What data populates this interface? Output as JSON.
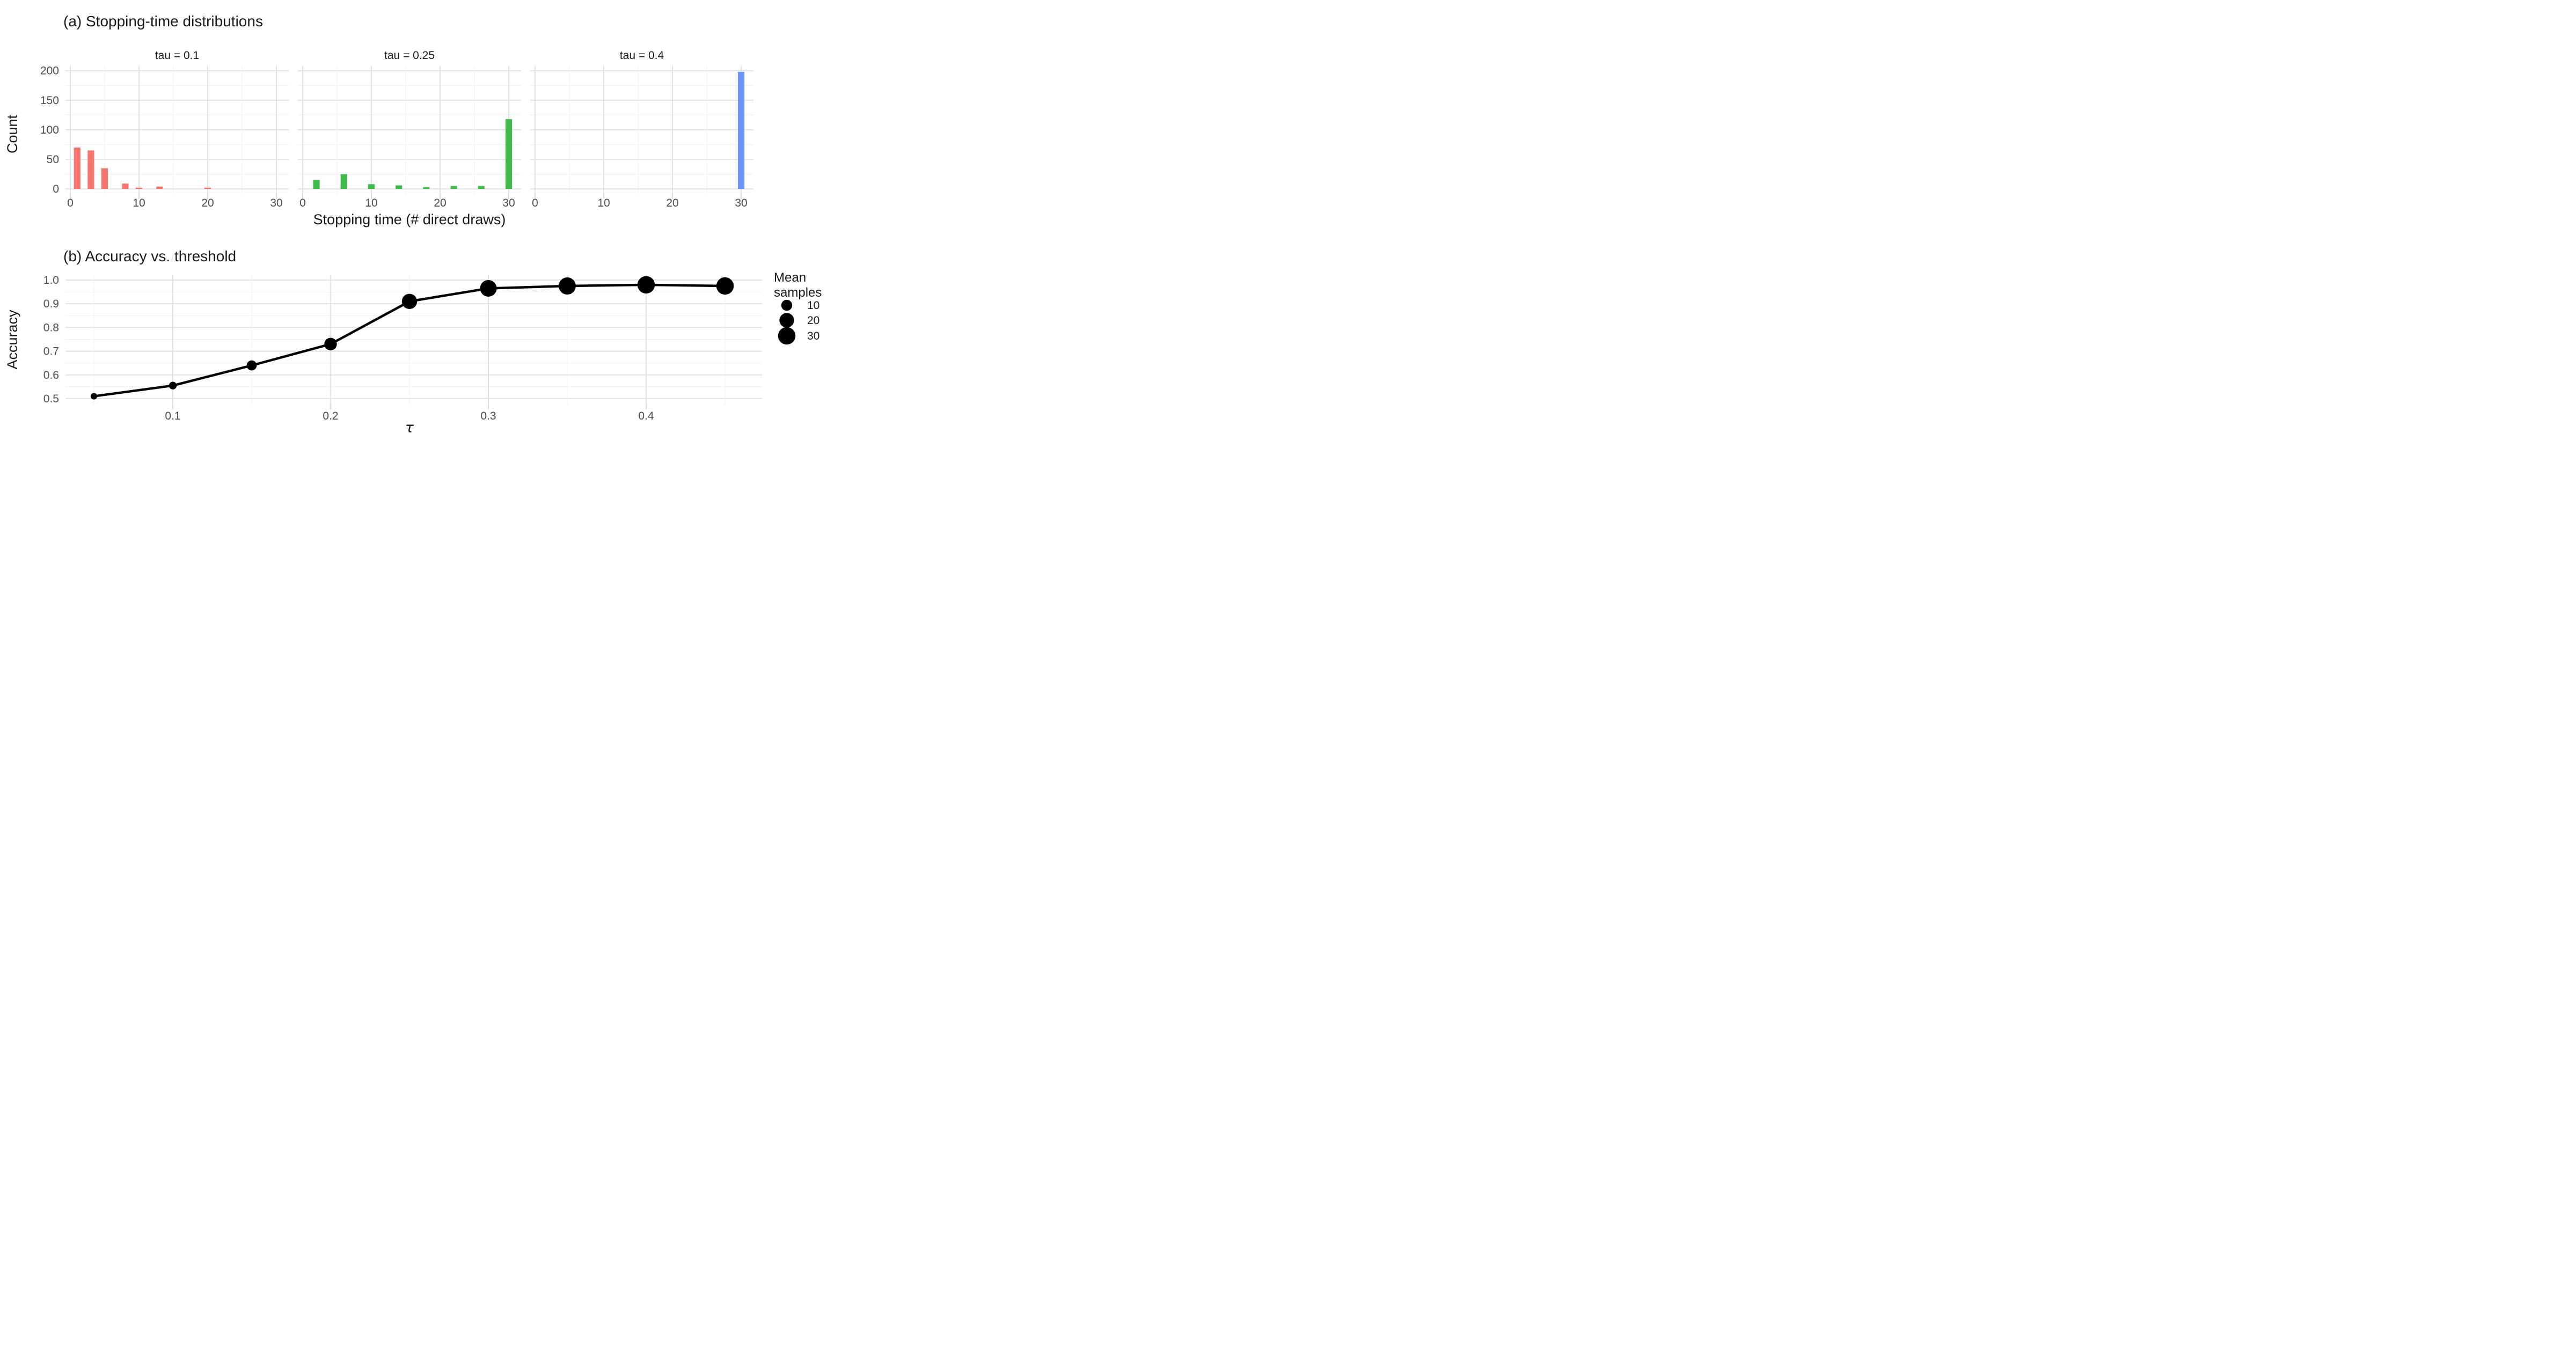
{
  "figure": {
    "background": "#ffffff",
    "grid_major_color": "#e2e2e2",
    "grid_minor_color": "#f0f0f0"
  },
  "chart_data": [
    {
      "id": "panel_a",
      "type": "bar",
      "title": "(a) Stopping-time distributions",
      "xlabel": "Stopping time (# direct draws)",
      "ylabel": "Count",
      "x_ticks": [
        0,
        10,
        20,
        30
      ],
      "y_ticks": [
        0,
        50,
        100,
        150,
        200
      ],
      "x_minor_ticks": [
        5,
        15,
        25
      ],
      "y_minor_ticks": [
        25,
        75,
        125,
        175
      ],
      "xlim": [
        -0.7,
        31.8
      ],
      "ylim": [
        -10,
        208
      ],
      "grid": true,
      "bar_width": 0.95,
      "facets": [
        {
          "label": "tau = 0.1",
          "color": "#F8766D",
          "bars": [
            [
              1,
              70
            ],
            [
              3,
              65
            ],
            [
              5,
              35
            ],
            [
              8,
              9
            ],
            [
              10,
              2
            ],
            [
              13,
              4
            ],
            [
              20,
              2
            ]
          ]
        },
        {
          "label": "tau = 0.25",
          "color": "#42BB4D",
          "bars": [
            [
              2,
              15
            ],
            [
              6,
              25
            ],
            [
              10,
              8
            ],
            [
              14,
              6
            ],
            [
              18,
              3
            ],
            [
              22,
              5
            ],
            [
              26,
              5
            ],
            [
              30,
              118
            ]
          ]
        },
        {
          "label": "tau = 0.4",
          "color": "#6B96F8",
          "bars": [
            [
              30,
              198
            ]
          ]
        }
      ]
    },
    {
      "id": "panel_b",
      "type": "line-scatter",
      "title": "(b) Accuracy vs. threshold",
      "xlabel": "τ",
      "ylabel": "Accuracy",
      "x": [
        0.05,
        0.1,
        0.15,
        0.2,
        0.25,
        0.3,
        0.35,
        0.4,
        0.45
      ],
      "accuracy": [
        0.51,
        0.555,
        0.64,
        0.73,
        0.91,
        0.965,
        0.975,
        0.98,
        0.975
      ],
      "mean_samples": [
        2.5,
        4,
        8,
        14,
        22,
        27,
        29,
        30,
        30
      ],
      "x_ticks": [
        0.1,
        0.2,
        0.3,
        0.4
      ],
      "x_minor_ticks": [
        0.05,
        0.15,
        0.25,
        0.35,
        0.45
      ],
      "y_ticks": [
        0.5,
        0.6,
        0.7,
        0.8,
        0.9,
        1.0
      ],
      "ylim": [
        0.473,
        1.022
      ],
      "line_color": "#000000",
      "point_color": "#000000",
      "legend": {
        "title_lines": [
          "Mean",
          "samples"
        ],
        "values": [
          10,
          20,
          30
        ]
      }
    }
  ]
}
